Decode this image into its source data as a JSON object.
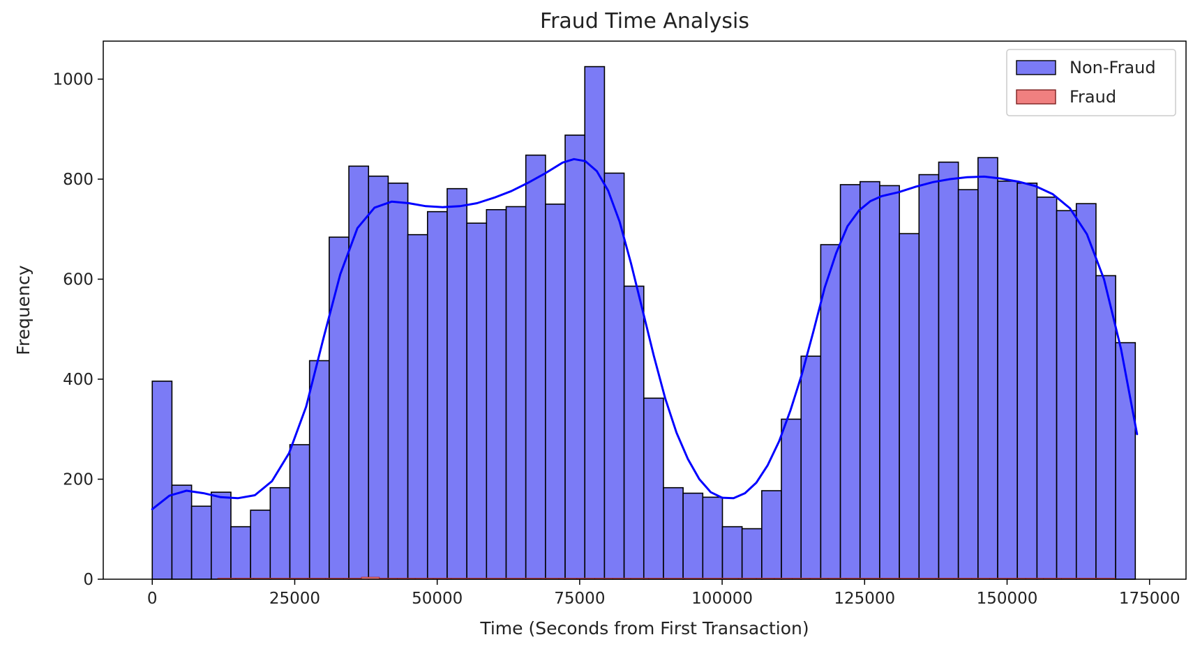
{
  "chart_data": {
    "type": "bar",
    "title": "Fraud Time Analysis",
    "xlabel": "Time (Seconds from First Transaction)",
    "ylabel": "Frequency",
    "xlim": [
      -8600,
      181400
    ],
    "ylim": [
      0,
      1076
    ],
    "x_ticks": [
      0,
      25000,
      50000,
      75000,
      100000,
      125000,
      150000,
      175000
    ],
    "y_ticks": [
      0,
      200,
      400,
      600,
      800,
      1000
    ],
    "grid": false,
    "legend_position": "top-right",
    "bin_start": 0,
    "bin_width": 3450,
    "series": [
      {
        "name": "Non-Fraud",
        "color": "#7b7bf6",
        "edge_color": "#000000",
        "kde_color": "#0000ff",
        "values": [
          396,
          188,
          146,
          174,
          105,
          138,
          183,
          269,
          437,
          684,
          826,
          806,
          792,
          689,
          735,
          781,
          712,
          739,
          745,
          848,
          750,
          888,
          1025,
          812,
          586,
          362,
          183,
          172,
          164,
          105,
          101,
          177,
          320,
          446,
          669,
          789,
          795,
          787,
          691,
          809,
          834,
          779,
          843,
          796,
          792,
          764,
          737,
          751,
          607,
          473
        ],
        "kde": [
          [
            0,
            140
          ],
          [
            3000,
            167
          ],
          [
            6000,
            177
          ],
          [
            9000,
            172
          ],
          [
            12000,
            164
          ],
          [
            15000,
            162
          ],
          [
            18000,
            168
          ],
          [
            21000,
            196
          ],
          [
            24000,
            252
          ],
          [
            27000,
            345
          ],
          [
            30000,
            480
          ],
          [
            33000,
            610
          ],
          [
            36000,
            702
          ],
          [
            39000,
            743
          ],
          [
            42000,
            755
          ],
          [
            45000,
            752
          ],
          [
            48000,
            746
          ],
          [
            51000,
            744
          ],
          [
            54000,
            746
          ],
          [
            57000,
            752
          ],
          [
            60000,
            763
          ],
          [
            63000,
            776
          ],
          [
            66000,
            793
          ],
          [
            69000,
            812
          ],
          [
            72000,
            833
          ],
          [
            74000,
            840
          ],
          [
            76000,
            836
          ],
          [
            78000,
            816
          ],
          [
            80000,
            777
          ],
          [
            82000,
            715
          ],
          [
            84000,
            632
          ],
          [
            86000,
            540
          ],
          [
            88000,
            447
          ],
          [
            90000,
            362
          ],
          [
            92000,
            293
          ],
          [
            94000,
            240
          ],
          [
            96000,
            200
          ],
          [
            98000,
            174
          ],
          [
            100000,
            163
          ],
          [
            102000,
            162
          ],
          [
            104000,
            172
          ],
          [
            106000,
            193
          ],
          [
            108000,
            228
          ],
          [
            110000,
            276
          ],
          [
            112000,
            338
          ],
          [
            114000,
            410
          ],
          [
            116000,
            495
          ],
          [
            118000,
            583
          ],
          [
            120000,
            652
          ],
          [
            122000,
            706
          ],
          [
            124000,
            737
          ],
          [
            126000,
            756
          ],
          [
            128000,
            766
          ],
          [
            131000,
            774
          ],
          [
            134000,
            785
          ],
          [
            137000,
            794
          ],
          [
            140000,
            800
          ],
          [
            143000,
            804
          ],
          [
            146000,
            805
          ],
          [
            149000,
            801
          ],
          [
            152000,
            795
          ],
          [
            155000,
            786
          ],
          [
            158000,
            770
          ],
          [
            161000,
            742
          ],
          [
            164000,
            690
          ],
          [
            167000,
            600
          ],
          [
            170000,
            460
          ],
          [
            172800,
            290
          ]
        ]
      },
      {
        "name": "Fraud",
        "color": "#f08080",
        "edge_color": "#b03030",
        "bin_start": 11500,
        "bin_width": 3150,
        "values": [
          2,
          2,
          2,
          2,
          2,
          2,
          2,
          2,
          4,
          2,
          2,
          2,
          2,
          2,
          2,
          2,
          2,
          2,
          2,
          2,
          2,
          2,
          2,
          2,
          2,
          2,
          2,
          2,
          2,
          2,
          2,
          2,
          2,
          2,
          2,
          2,
          2,
          2,
          2,
          2,
          2,
          2,
          2,
          2,
          2,
          2,
          2,
          2,
          2,
          2
        ]
      }
    ]
  }
}
